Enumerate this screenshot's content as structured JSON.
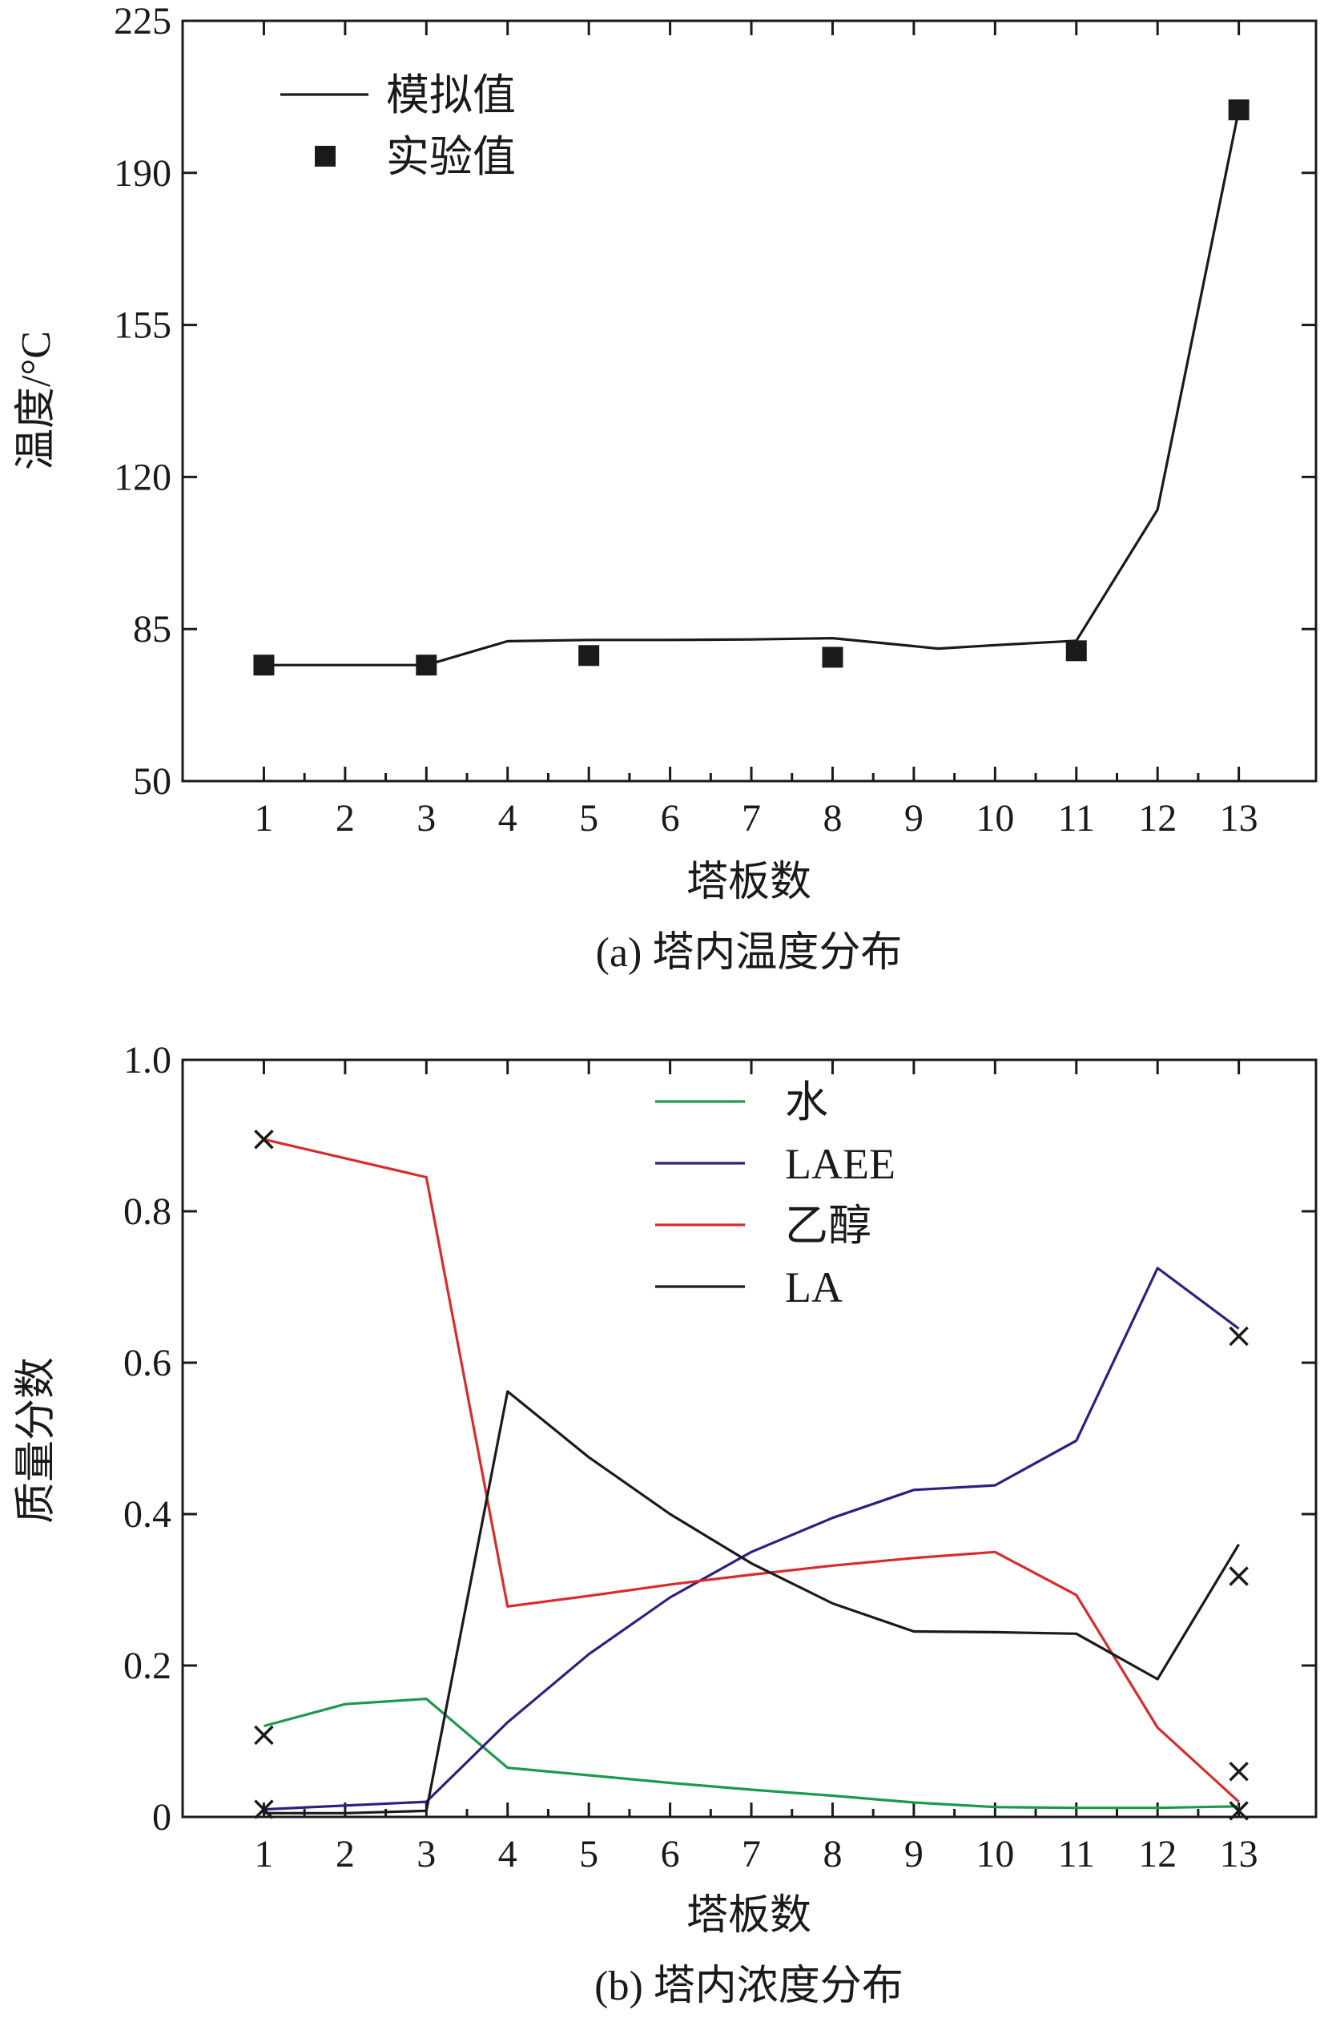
{
  "chart_data": [
    {
      "type": "line",
      "caption": "(a) 塔内温度分布",
      "title": "",
      "xlabel": "塔板数",
      "ylabel": "温度/°C",
      "xlim": [
        0,
        13.95
      ],
      "ylim": [
        50,
        225
      ],
      "x_ticks": [
        1,
        2,
        3,
        4,
        5,
        6,
        7,
        8,
        9,
        10,
        11,
        12,
        13
      ],
      "y_ticks": [
        50,
        85,
        120,
        155,
        190,
        225
      ],
      "legend_position": "top-left",
      "grid": false,
      "series": [
        {
          "name": "模拟值",
          "kind": "line",
          "color": "#1a1a1a",
          "x": [
            1,
            3,
            4,
            5,
            6,
            7,
            8,
            9.3,
            10,
            11,
            12,
            13
          ],
          "y": [
            76.7,
            76.7,
            82.2,
            82.5,
            82.5,
            82.6,
            82.9,
            80.5,
            81.3,
            82.3,
            112.5,
            204.5
          ]
        },
        {
          "name": "实验值",
          "kind": "scatter",
          "marker": "square",
          "color": "#1a1a1a",
          "x": [
            1,
            3,
            5,
            8,
            11,
            13
          ],
          "y": [
            76.7,
            76.7,
            78.9,
            78.5,
            80.0,
            204.5
          ]
        }
      ]
    },
    {
      "type": "line",
      "caption": "(b) 塔内浓度分布",
      "title": "",
      "xlabel": "塔板数",
      "ylabel": "质量分数",
      "xlim": [
        0,
        13.95
      ],
      "ylim": [
        0,
        1.0
      ],
      "x_ticks": [
        1,
        2,
        3,
        4,
        5,
        6,
        7,
        8,
        9,
        10,
        11,
        12,
        13
      ],
      "y_ticks": [
        0,
        0.2,
        0.4,
        0.6,
        0.8,
        1.0
      ],
      "y_tick_labels": [
        "0",
        "0.2",
        "0.4",
        "0.6",
        "0.8",
        "1.0"
      ],
      "legend_position": "top-center",
      "grid": false,
      "series": [
        {
          "name": "水",
          "kind": "line",
          "color": "#1a9a4a",
          "x": [
            1,
            2,
            3,
            4,
            5,
            6,
            7,
            8,
            9,
            10,
            11,
            12,
            13
          ],
          "y": [
            0.12,
            0.149,
            0.156,
            0.065,
            0.055,
            0.045,
            0.036,
            0.028,
            0.019,
            0.013,
            0.012,
            0.012,
            0.014
          ]
        },
        {
          "name": "LAEE",
          "kind": "line",
          "color": "#2e2080",
          "x": [
            1,
            2,
            3,
            4,
            5,
            6,
            7,
            8,
            9,
            10,
            11,
            12,
            13
          ],
          "y": [
            0.01,
            0.015,
            0.02,
            0.125,
            0.215,
            0.29,
            0.35,
            0.395,
            0.432,
            0.438,
            0.497,
            0.725,
            0.645
          ]
        },
        {
          "name": "乙醇",
          "kind": "line",
          "color": "#d92b2b",
          "x": [
            1,
            3,
            4,
            5,
            6,
            7,
            8,
            9,
            10,
            11,
            12,
            13
          ],
          "y": [
            0.895,
            0.845,
            0.278,
            0.292,
            0.307,
            0.32,
            0.332,
            0.342,
            0.35,
            0.293,
            0.118,
            0.02
          ]
        },
        {
          "name": "LA",
          "kind": "line",
          "color": "#1a1a1a",
          "x": [
            1,
            2,
            3,
            4,
            5,
            6,
            7,
            8,
            9,
            10,
            11,
            12,
            13
          ],
          "y": [
            0.005,
            0.005,
            0.008,
            0.562,
            0.475,
            0.4,
            0.335,
            0.282,
            0.245,
            0.244,
            0.242,
            0.182,
            0.36
          ]
        },
        {
          "name": "",
          "kind": "scatter",
          "marker": "x",
          "color": "#1a1a1a",
          "x": [
            1,
            1,
            1,
            13,
            13,
            13,
            13
          ],
          "y": [
            0.895,
            0.108,
            0.01,
            0.635,
            0.318,
            0.06,
            0.008
          ]
        }
      ]
    }
  ]
}
